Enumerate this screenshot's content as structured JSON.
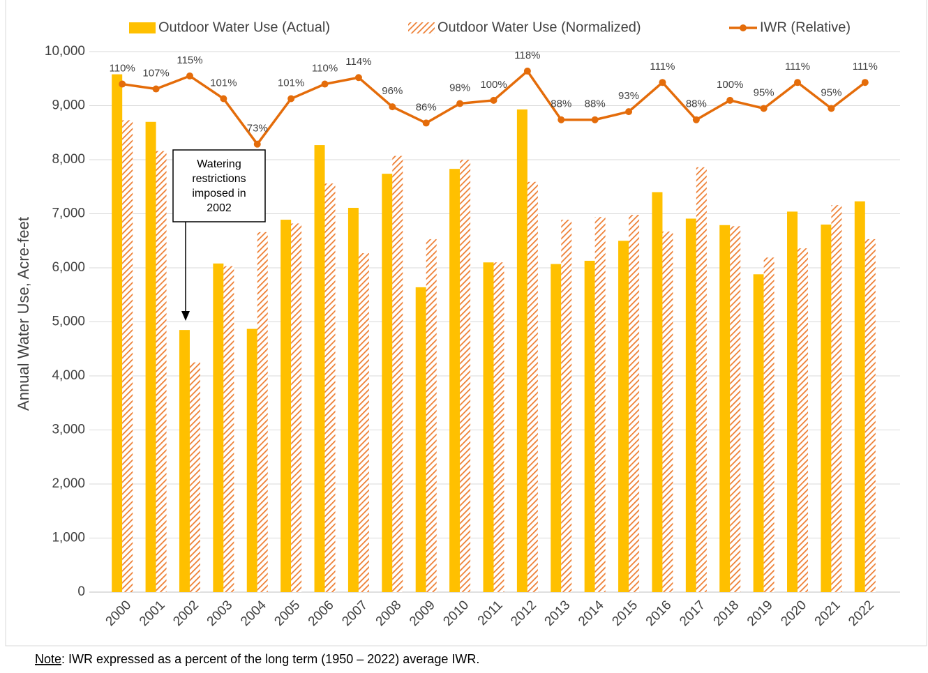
{
  "chart_data": {
    "type": "bar-line",
    "y_label": "Annual Water Use, Acre-feet",
    "note_label": "Note",
    "note": ": IWR expressed as a percent of the long term (1950 – 2022) average IWR.",
    "annotation": [
      "Watering",
      "restrictions",
      "imposed in",
      "2002"
    ],
    "categories": [
      "2000",
      "2001",
      "2002",
      "2003",
      "2004",
      "2005",
      "2006",
      "2007",
      "2008",
      "2009",
      "2010",
      "2011",
      "2012",
      "2013",
      "2014",
      "2015",
      "2016",
      "2017",
      "2018",
      "2019",
      "2020",
      "2021",
      "2022"
    ],
    "series": [
      {
        "name": "Outdoor Water Use (Actual)",
        "type": "bar",
        "color": "#ffc000",
        "values": [
          9580,
          8700,
          4850,
          6080,
          4870,
          6890,
          8270,
          7110,
          7740,
          5640,
          7830,
          6100,
          8930,
          6070,
          6130,
          6500,
          7400,
          6910,
          6790,
          5880,
          7040,
          6800,
          7230
        ]
      },
      {
        "name": "Outdoor Water Use (Normalized)",
        "type": "bar",
        "hatch": true,
        "color": "#ed7d31",
        "values": [
          8730,
          8160,
          4250,
          6030,
          6660,
          6820,
          7560,
          6270,
          8070,
          6530,
          8000,
          6100,
          7590,
          6890,
          6940,
          6980,
          6670,
          7860,
          6770,
          6190,
          6360,
          7160,
          6530
        ]
      },
      {
        "name": "IWR (Relative)",
        "type": "line",
        "axis": "y2",
        "color": "#e46c0a",
        "values": [
          110,
          107,
          115,
          101,
          73,
          101,
          110,
          114,
          96,
          86,
          98,
          100,
          118,
          88,
          88,
          93,
          111,
          88,
          100,
          95,
          111,
          95,
          111
        ],
        "value_labels": [
          "110%",
          "107%",
          "115%",
          "101%",
          "73%",
          "101%",
          "110%",
          "114%",
          "96%",
          "86%",
          "98%",
          "100%",
          "118%",
          "88%",
          "88%",
          "93%",
          "111%",
          "88%",
          "100%",
          "95%",
          "111%",
          "95%",
          "111%"
        ]
      }
    ],
    "ylim": [
      0,
      10000
    ],
    "yticks": [
      0,
      {
        "value": 1000,
        "label": "1,000"
      },
      {
        "value": 2000,
        "label": "2,000"
      },
      {
        "value": 3000,
        "label": "3,000"
      },
      {
        "value": 4000,
        "label": "4,000"
      },
      {
        "value": 5000,
        "label": "5,000"
      },
      {
        "value": 6000,
        "label": "6,000"
      },
      {
        "value": 7000,
        "label": "7,000"
      },
      {
        "value": 8000,
        "label": "8,000"
      },
      {
        "value": 9000,
        "label": "9,000"
      },
      {
        "value": 10000,
        "label": "10,000"
      }
    ],
    "y2lim": [
      -203,
      130
    ],
    "grid": true
  }
}
